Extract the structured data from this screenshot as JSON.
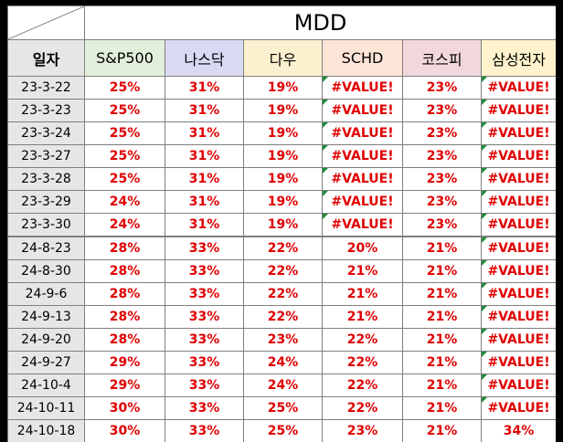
{
  "title": "MDD",
  "headers": [
    "일자",
    "S&P500",
    "나스닥",
    "다우",
    "SCHD",
    "코스피",
    "삼성전자"
  ],
  "rows": [
    {
      "date": "23-3-22",
      "vals": [
        "25%",
        "31%",
        "19%",
        "#VALUE!",
        "23%",
        "#VALUE!"
      ]
    },
    {
      "date": "23-3-23",
      "vals": [
        "25%",
        "31%",
        "19%",
        "#VALUE!",
        "23%",
        "#VALUE!"
      ]
    },
    {
      "date": "23-3-24",
      "vals": [
        "25%",
        "31%",
        "19%",
        "#VALUE!",
        "23%",
        "#VALUE!"
      ]
    },
    {
      "date": "23-3-27",
      "vals": [
        "25%",
        "31%",
        "19%",
        "#VALUE!",
        "23%",
        "#VALUE!"
      ]
    },
    {
      "date": "23-3-28",
      "vals": [
        "25%",
        "31%",
        "19%",
        "#VALUE!",
        "23%",
        "#VALUE!"
      ]
    },
    {
      "date": "23-3-29",
      "vals": [
        "24%",
        "31%",
        "19%",
        "#VALUE!",
        "23%",
        "#VALUE!"
      ]
    },
    {
      "date": "23-3-30",
      "vals": [
        "24%",
        "31%",
        "19%",
        "#VALUE!",
        "23%",
        "#VALUE!"
      ]
    },
    {
      "date": "24-8-23",
      "vals": [
        "28%",
        "33%",
        "22%",
        "20%",
        "21%",
        "#VALUE!"
      ]
    },
    {
      "date": "24-8-30",
      "vals": [
        "28%",
        "33%",
        "22%",
        "21%",
        "21%",
        "#VALUE!"
      ]
    },
    {
      "date": "24-9-6",
      "vals": [
        "28%",
        "33%",
        "22%",
        "21%",
        "21%",
        "#VALUE!"
      ]
    },
    {
      "date": "24-9-13",
      "vals": [
        "28%",
        "33%",
        "22%",
        "21%",
        "21%",
        "#VALUE!"
      ]
    },
    {
      "date": "24-9-20",
      "vals": [
        "28%",
        "33%",
        "23%",
        "22%",
        "21%",
        "#VALUE!"
      ]
    },
    {
      "date": "24-9-27",
      "vals": [
        "29%",
        "33%",
        "24%",
        "22%",
        "21%",
        "#VALUE!"
      ]
    },
    {
      "date": "24-10-4",
      "vals": [
        "29%",
        "33%",
        "24%",
        "22%",
        "21%",
        "#VALUE!"
      ]
    },
    {
      "date": "24-10-11",
      "vals": [
        "30%",
        "33%",
        "25%",
        "22%",
        "21%",
        "#VALUE!"
      ]
    },
    {
      "date": "24-10-18",
      "vals": [
        "30%",
        "33%",
        "25%",
        "23%",
        "21%",
        "34%"
      ]
    }
  ],
  "colors": {
    "value_text": "#e00000",
    "error_flag": "#1f8b3a",
    "date_fill": "#e7e6e6"
  }
}
